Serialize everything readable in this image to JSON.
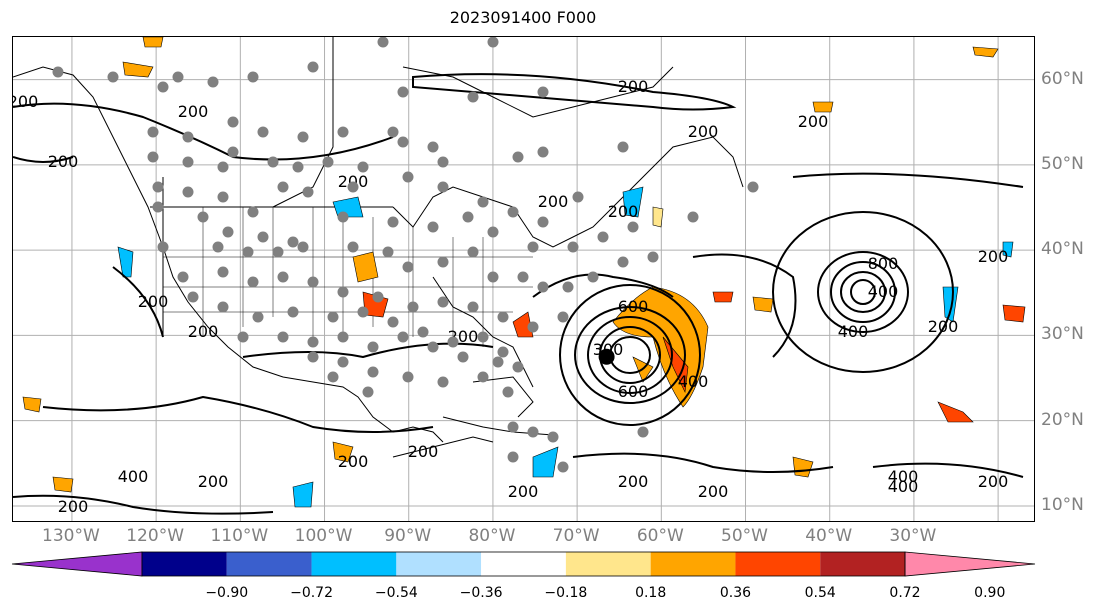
{
  "title": "2023091400 F000",
  "longitude_labels": [
    "130°W",
    "120°W",
    "110°W",
    "100°W",
    "90°W",
    "80°W",
    "70°W",
    "60°W",
    "50°W",
    "40°W",
    "30°W"
  ],
  "latitude_labels": [
    "60°N",
    "50°N",
    "40°N",
    "30°N",
    "20°N",
    "10°N"
  ],
  "contour_labels": [
    "200",
    "200",
    "200",
    "200",
    "200",
    "200",
    "200",
    "200",
    "200",
    "200",
    "200",
    "200",
    "200",
    "200",
    "200",
    "200",
    "200",
    "200",
    "200",
    "200",
    "600",
    "600",
    "300",
    "800",
    "400",
    "400",
    "400",
    "400",
    "400",
    "400",
    "200",
    "200"
  ],
  "storm_marker": {
    "lon": -66.5,
    "lat": 27.5
  },
  "colorbar": {
    "tick_labels": [
      "−0.90",
      "−0.72",
      "−0.54",
      "−0.36",
      "−0.18",
      "0.18",
      "0.36",
      "0.54",
      "0.72",
      "0.90"
    ],
    "colors": [
      "#9932CC",
      "#00008B",
      "#3A5FCD",
      "#00BFFF",
      "#B0E0FF",
      "#FFFFFF",
      "#FFE68C",
      "#FFA500",
      "#FF4500",
      "#B22222",
      "#FF88AA"
    ]
  },
  "colors": {
    "grid": "#b0b0b0",
    "contour": "#000000",
    "land_border": "#000000",
    "station": "#808080"
  }
}
